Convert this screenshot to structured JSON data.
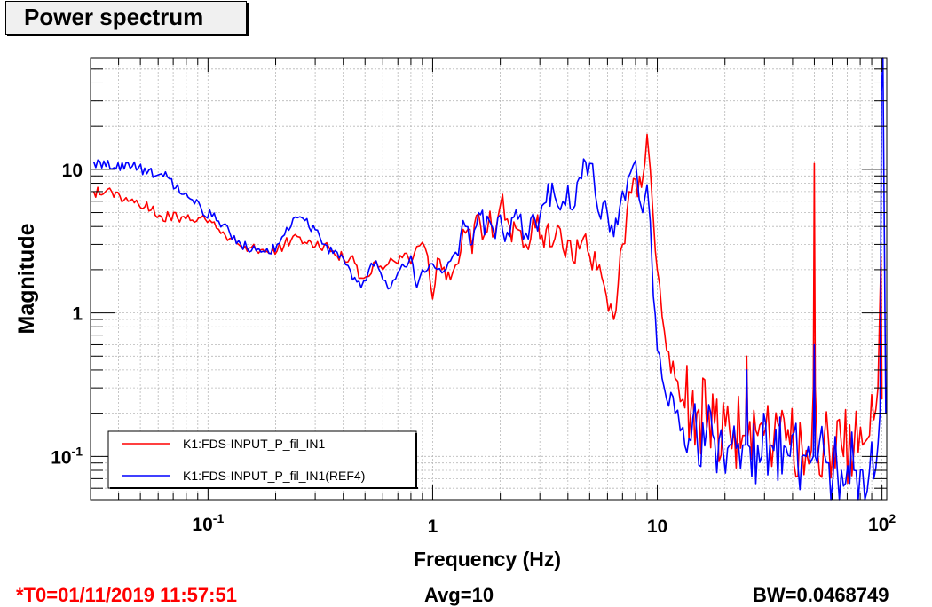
{
  "window": {
    "title": "Power spectrum"
  },
  "footer": {
    "t0": "*T0=01/11/2019 11:57:51",
    "avg": "Avg=10",
    "bw": "BW=0.0468749"
  },
  "colors": {
    "series_1": "#ff0000",
    "series_2": "#0000ff",
    "t0_text": "#ff0000"
  },
  "chart_data": {
    "type": "line",
    "xscale": "log",
    "yscale": "log",
    "xlim": [
      0.03,
      105
    ],
    "ylim": [
      0.05,
      60
    ],
    "grid": true,
    "xlabel": "Frequency (Hz)",
    "ylabel": "Magnitude",
    "x_ticks": [
      {
        "value": 0.1,
        "base": "10",
        "exp": "-1"
      },
      {
        "value": 1,
        "label": "1"
      },
      {
        "value": 10,
        "label": "10"
      },
      {
        "value": 100,
        "base": "10",
        "exp": "2"
      }
    ],
    "y_ticks": [
      {
        "value": 0.1,
        "base": "10",
        "exp": "-1"
      },
      {
        "value": 1,
        "label": "1"
      },
      {
        "value": 10,
        "label": "10"
      }
    ],
    "legend_position": "bottom-left",
    "series": [
      {
        "name": "K1:FDS-INPUT_P_fil_IN1",
        "color": "#ff0000",
        "points": [
          [
            0.031,
            7.0
          ],
          [
            0.035,
            7.0
          ],
          [
            0.046,
            6.2
          ],
          [
            0.062,
            4.7
          ],
          [
            0.078,
            4.7
          ],
          [
            0.093,
            4.6
          ],
          [
            0.109,
            3.9
          ],
          [
            0.125,
            3.3
          ],
          [
            0.14,
            2.9
          ],
          [
            0.156,
            2.85
          ],
          [
            0.172,
            2.75
          ],
          [
            0.187,
            2.6
          ],
          [
            0.203,
            2.7
          ],
          [
            0.219,
            3.0
          ],
          [
            0.234,
            3.2
          ],
          [
            0.25,
            3.4
          ],
          [
            0.27,
            3.1
          ],
          [
            0.3,
            2.9
          ],
          [
            0.33,
            3.0
          ],
          [
            0.36,
            2.7
          ],
          [
            0.4,
            2.4
          ],
          [
            0.44,
            2.5
          ],
          [
            0.48,
            1.75
          ],
          [
            0.52,
            1.8
          ],
          [
            0.56,
            2.3
          ],
          [
            0.6,
            2.0
          ],
          [
            0.65,
            2.4
          ],
          [
            0.7,
            2.2
          ],
          [
            0.75,
            2.6
          ],
          [
            0.8,
            2.2
          ],
          [
            0.85,
            2.9
          ],
          [
            0.9,
            3.1
          ],
          [
            0.95,
            2.5
          ],
          [
            1.0,
            1.25
          ],
          [
            1.05,
            2.4
          ],
          [
            1.1,
            2.0
          ],
          [
            1.2,
            1.7
          ],
          [
            1.3,
            2.2
          ],
          [
            1.4,
            3.6
          ],
          [
            1.5,
            2.6
          ],
          [
            1.6,
            4.9
          ],
          [
            1.7,
            3.5
          ],
          [
            1.8,
            5.1
          ],
          [
            1.9,
            3.6
          ],
          [
            2.0,
            5.6
          ],
          [
            2.2,
            4.0
          ],
          [
            2.4,
            3.8
          ],
          [
            2.6,
            3.0
          ],
          [
            2.8,
            4.6
          ],
          [
            3.0,
            3.3
          ],
          [
            3.2,
            3.8
          ],
          [
            3.4,
            2.9
          ],
          [
            3.6,
            4.1
          ],
          [
            3.8,
            2.8
          ],
          [
            4.0,
            3.2
          ],
          [
            4.3,
            2.2
          ],
          [
            4.6,
            3.1
          ],
          [
            5.0,
            2.5
          ],
          [
            5.4,
            2.0
          ],
          [
            5.8,
            1.55
          ],
          [
            6.2,
            1.15
          ],
          [
            6.4,
            0.9
          ],
          [
            6.7,
            1.6
          ],
          [
            7.0,
            3.0
          ],
          [
            7.5,
            7.0
          ],
          [
            8.0,
            8.5
          ],
          [
            8.5,
            7.5
          ],
          [
            8.8,
            11.0
          ],
          [
            9.0,
            17.5
          ],
          [
            9.3,
            10.0
          ],
          [
            9.6,
            4.5
          ],
          [
            10.0,
            2.0
          ],
          [
            10.5,
            0.95
          ],
          [
            11.0,
            0.55
          ],
          [
            12.0,
            0.35
          ],
          [
            13.0,
            0.25
          ],
          [
            15.0,
            0.2
          ],
          [
            18.0,
            0.17
          ],
          [
            21.0,
            0.15
          ],
          [
            24.0,
            0.14
          ],
          [
            24.7,
            0.14
          ],
          [
            25.0,
            0.5
          ],
          [
            25.3,
            0.14
          ],
          [
            28.0,
            0.14
          ],
          [
            33.0,
            0.13
          ],
          [
            39.0,
            0.12
          ],
          [
            44.0,
            0.12
          ],
          [
            46.0,
            0.11
          ],
          [
            48.5,
            0.11
          ],
          [
            49.5,
            0.3
          ],
          [
            50.0,
            11.0
          ],
          [
            50.5,
            0.3
          ],
          [
            51.5,
            0.12
          ],
          [
            58.0,
            0.12
          ],
          [
            66.0,
            0.12
          ],
          [
            75.0,
            0.11
          ],
          [
            82.0,
            0.12
          ],
          [
            88.0,
            0.14
          ],
          [
            92.0,
            0.18
          ],
          [
            96.0,
            0.3
          ],
          [
            99.0,
            2.5
          ],
          [
            100.0,
            0.25
          ]
        ]
      },
      {
        "name": "K1:FDS-INPUT_P_fil_IN1(REF4)",
        "color": "#0000ff",
        "points": [
          [
            0.031,
            11.3
          ],
          [
            0.046,
            10.5
          ],
          [
            0.062,
            9.3
          ],
          [
            0.078,
            6.7
          ],
          [
            0.093,
            5.4
          ],
          [
            0.109,
            4.4
          ],
          [
            0.125,
            3.6
          ],
          [
            0.14,
            3.0
          ],
          [
            0.156,
            2.7
          ],
          [
            0.172,
            2.65
          ],
          [
            0.187,
            2.6
          ],
          [
            0.203,
            3.0
          ],
          [
            0.219,
            3.5
          ],
          [
            0.234,
            4.0
          ],
          [
            0.25,
            4.6
          ],
          [
            0.27,
            4.4
          ],
          [
            0.3,
            3.8
          ],
          [
            0.33,
            3.0
          ],
          [
            0.36,
            2.6
          ],
          [
            0.4,
            2.4
          ],
          [
            0.44,
            1.7
          ],
          [
            0.48,
            1.5
          ],
          [
            0.52,
            2.0
          ],
          [
            0.56,
            2.3
          ],
          [
            0.6,
            1.7
          ],
          [
            0.65,
            1.5
          ],
          [
            0.7,
            1.9
          ],
          [
            0.75,
            2.1
          ],
          [
            0.8,
            2.5
          ],
          [
            0.85,
            1.5
          ],
          [
            0.9,
            2.0
          ],
          [
            0.95,
            2.0
          ],
          [
            1.0,
            2.2
          ],
          [
            1.1,
            1.9
          ],
          [
            1.2,
            2.3
          ],
          [
            1.3,
            2.5
          ],
          [
            1.4,
            4.0
          ],
          [
            1.5,
            3.0
          ],
          [
            1.6,
            5.0
          ],
          [
            1.7,
            3.5
          ],
          [
            1.8,
            4.3
          ],
          [
            1.9,
            3.3
          ],
          [
            2.0,
            4.8
          ],
          [
            2.2,
            3.4
          ],
          [
            2.4,
            4.5
          ],
          [
            2.6,
            3.6
          ],
          [
            2.8,
            4.9
          ],
          [
            3.0,
            4.7
          ],
          [
            3.2,
            5.9
          ],
          [
            3.4,
            8.0
          ],
          [
            3.6,
            5.6
          ],
          [
            3.8,
            6.0
          ],
          [
            4.0,
            7.7
          ],
          [
            4.3,
            5.6
          ],
          [
            4.6,
            8.6
          ],
          [
            5.0,
            11.0
          ],
          [
            5.3,
            6.6
          ],
          [
            5.6,
            4.5
          ],
          [
            6.0,
            4.9
          ],
          [
            6.4,
            3.4
          ],
          [
            6.8,
            5.4
          ],
          [
            7.2,
            6.1
          ],
          [
            7.6,
            9.5
          ],
          [
            8.0,
            11.5
          ],
          [
            8.3,
            6.2
          ],
          [
            8.6,
            5.0
          ],
          [
            9.0,
            7.8
          ],
          [
            9.3,
            4.3
          ],
          [
            9.6,
            1.3
          ],
          [
            10.0,
            0.55
          ],
          [
            10.5,
            0.35
          ],
          [
            11.0,
            0.25
          ],
          [
            12.0,
            0.2
          ],
          [
            13.0,
            0.16
          ],
          [
            15.0,
            0.14
          ],
          [
            18.0,
            0.13
          ],
          [
            21.0,
            0.12
          ],
          [
            24.0,
            0.12
          ],
          [
            24.7,
            0.12
          ],
          [
            25.0,
            0.4
          ],
          [
            25.3,
            0.12
          ],
          [
            28.0,
            0.12
          ],
          [
            33.0,
            0.11
          ],
          [
            39.0,
            0.1
          ],
          [
            44.0,
            0.1
          ],
          [
            46.0,
            0.1
          ],
          [
            48.0,
            0.09
          ],
          [
            49.5,
            0.1
          ],
          [
            50.0,
            0.6
          ],
          [
            50.5,
            0.1
          ],
          [
            51.5,
            0.09
          ],
          [
            58.0,
            0.09
          ],
          [
            66.0,
            0.08
          ],
          [
            75.0,
            0.08
          ],
          [
            82.0,
            0.08
          ],
          [
            88.0,
            0.08
          ],
          [
            92.0,
            0.07
          ],
          [
            96.0,
            0.12
          ],
          [
            98.0,
            0.2
          ],
          [
            99.5,
            35.0
          ],
          [
            101.0,
            60.0
          ],
          [
            104.0,
            0.2
          ]
        ]
      }
    ]
  }
}
